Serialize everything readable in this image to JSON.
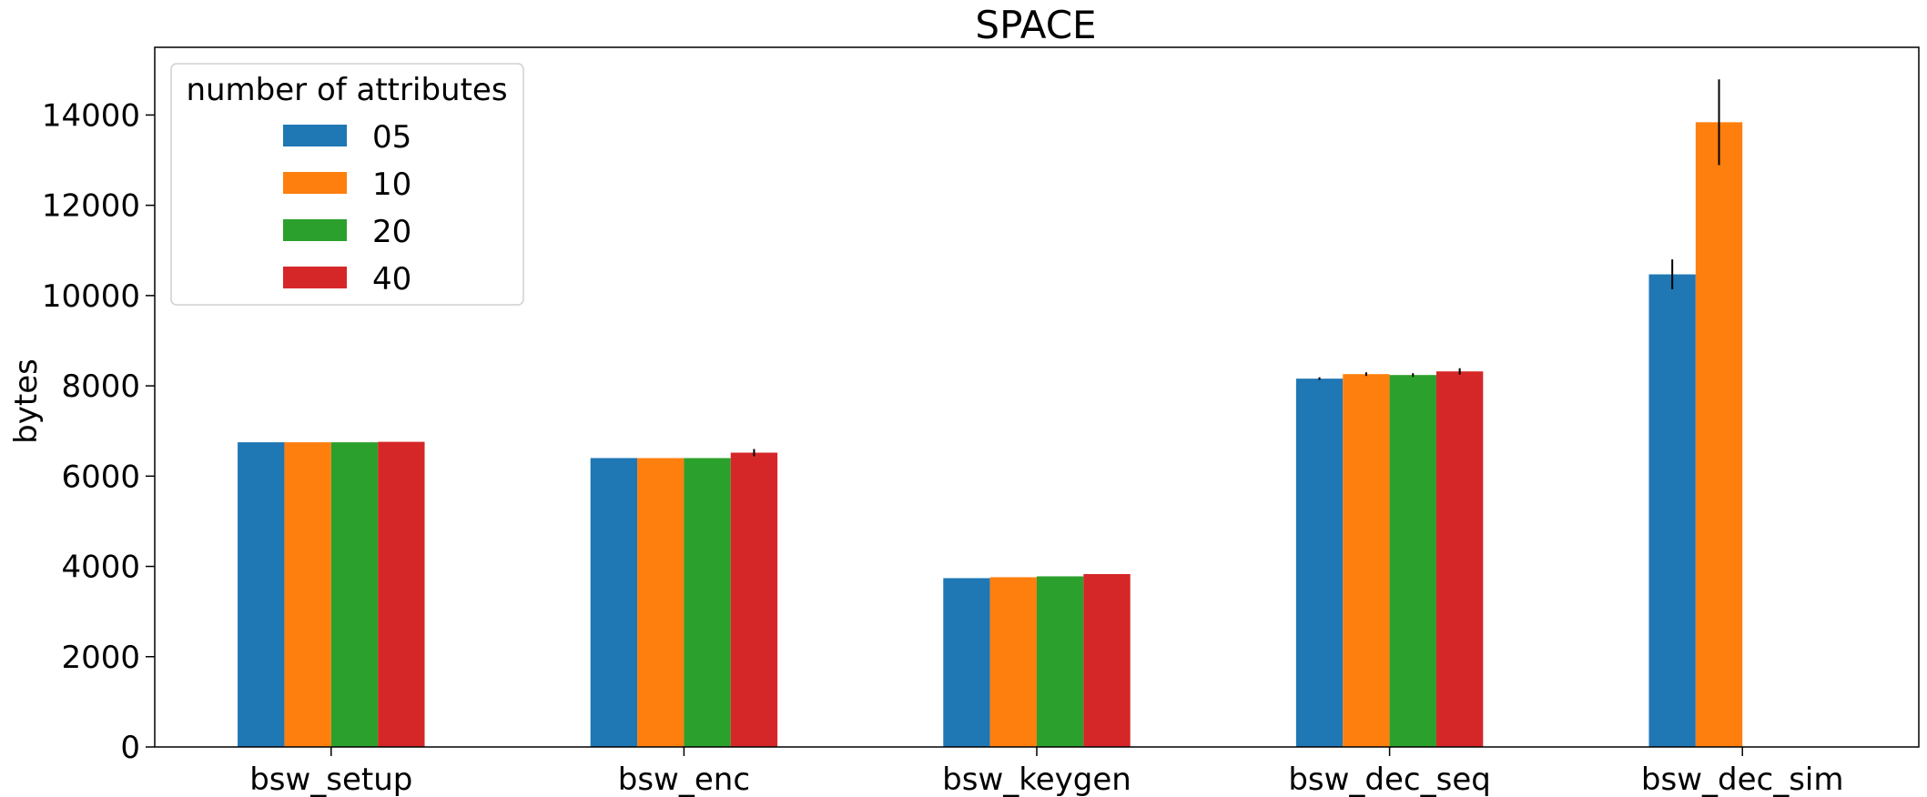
{
  "chart_data": {
    "type": "bar",
    "title": "SPACE",
    "xlabel": "",
    "ylabel": "bytes",
    "ylim": [
      0,
      15500
    ],
    "yticks": [
      0,
      2000,
      4000,
      6000,
      8000,
      10000,
      12000,
      14000
    ],
    "categories": [
      "bsw_setup",
      "bsw_enc",
      "bsw_keygen",
      "bsw_dec_seq",
      "bsw_dec_sim"
    ],
    "legend": {
      "title": "number of attributes",
      "position": "top-left"
    },
    "grid": false,
    "series": [
      {
        "name": "05",
        "color": "#1f77b4",
        "values": [
          6750,
          6400,
          3740,
          8160,
          10470
        ],
        "errors": [
          0,
          0,
          0,
          30,
          330
        ]
      },
      {
        "name": "10",
        "color": "#ff7f0e",
        "values": [
          6750,
          6400,
          3760,
          8260,
          13840
        ],
        "errors": [
          0,
          0,
          0,
          40,
          950
        ]
      },
      {
        "name": "20",
        "color": "#2ca02c",
        "values": [
          6750,
          6400,
          3780,
          8240,
          null
        ],
        "errors": [
          0,
          0,
          0,
          40,
          0
        ]
      },
      {
        "name": "40",
        "color": "#d62728",
        "values": [
          6760,
          6520,
          3830,
          8320,
          null
        ],
        "errors": [
          0,
          80,
          0,
          70,
          0
        ]
      }
    ]
  }
}
